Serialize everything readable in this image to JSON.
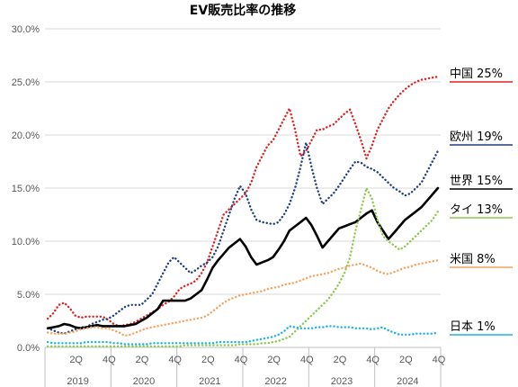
{
  "chart_data": {
    "type": "line",
    "title": "EV販売比率の推移",
    "xlabel": "",
    "ylabel": "",
    "ylim": [
      0,
      0.3
    ],
    "ytick_labels": [
      "0.0%",
      "5.0%",
      "10.0%",
      "15.0%",
      "20.0%",
      "25.0%",
      "30.0%"
    ],
    "ytick_values": [
      0,
      0.05,
      0.1,
      0.15,
      0.2,
      0.25,
      0.3
    ],
    "x": [
      "2019-01",
      "2019-02",
      "2019-03",
      "2019-04",
      "2019-05",
      "2019-06",
      "2019-07",
      "2019-08",
      "2019-09",
      "2019-10",
      "2019-11",
      "2019-12",
      "2020-01",
      "2020-02",
      "2020-03",
      "2020-04",
      "2020-05",
      "2020-06",
      "2020-07",
      "2020-08",
      "2020-09",
      "2020-10",
      "2020-11",
      "2020-12",
      "2021-01",
      "2021-02",
      "2021-03",
      "2021-04",
      "2021-05",
      "2021-06",
      "2021-07",
      "2021-08",
      "2021-09",
      "2021-10",
      "2021-11",
      "2021-12",
      "2022-01",
      "2022-02",
      "2022-03",
      "2022-04",
      "2022-05",
      "2022-06",
      "2022-07",
      "2022-08",
      "2022-09",
      "2022-10",
      "2022-11",
      "2022-12",
      "2023-01",
      "2023-02",
      "2023-03",
      "2023-04",
      "2023-05",
      "2023-06",
      "2023-07",
      "2023-08",
      "2023-09",
      "2023-10",
      "2023-11",
      "2023-12",
      "2024-01",
      "2024-02",
      "2024-03",
      "2024-04",
      "2024-05",
      "2024-06",
      "2024-07",
      "2024-08",
      "2024-09",
      "2024-10",
      "2024-11",
      "2024-12"
    ],
    "quarter_labels": [
      "2Q",
      "4Q",
      "2Q",
      "4Q",
      "2Q",
      "4Q",
      "2Q",
      "4Q",
      "2Q",
      "4Q",
      "2Q",
      "4Q"
    ],
    "year_labels": [
      "2019",
      "2020",
      "2021",
      "2022",
      "2023",
      "2024"
    ],
    "grid": "horizontal",
    "series": [
      {
        "name": "中国",
        "label": "中国  25%",
        "color": "#e02020",
        "style": "dotted",
        "values": [
          0.027,
          0.032,
          0.04,
          0.042,
          0.037,
          0.03,
          0.028,
          0.029,
          0.029,
          0.029,
          0.029,
          0.026,
          0.022,
          0.02,
          0.021,
          0.022,
          0.024,
          0.027,
          0.03,
          0.033,
          0.036,
          0.04,
          0.043,
          0.048,
          0.055,
          0.058,
          0.06,
          0.063,
          0.07,
          0.08,
          0.095,
          0.11,
          0.125,
          0.13,
          0.135,
          0.14,
          0.145,
          0.155,
          0.17,
          0.18,
          0.19,
          0.195,
          0.205,
          0.215,
          0.225,
          0.205,
          0.18,
          0.185,
          0.195,
          0.205,
          0.205,
          0.208,
          0.21,
          0.215,
          0.22,
          0.224,
          0.21,
          0.195,
          0.178,
          0.19,
          0.205,
          0.215,
          0.225,
          0.232,
          0.238,
          0.243,
          0.247,
          0.25,
          0.252,
          0.253,
          0.254,
          0.255
        ]
      },
      {
        "name": "欧州",
        "label": "欧州  19%",
        "color": "#1f3f7f",
        "style": "dotted",
        "values": [
          0.018,
          0.016,
          0.014,
          0.013,
          0.015,
          0.017,
          0.019,
          0.019,
          0.022,
          0.024,
          0.026,
          0.027,
          0.03,
          0.034,
          0.038,
          0.04,
          0.04,
          0.04,
          0.045,
          0.05,
          0.06,
          0.07,
          0.08,
          0.085,
          0.08,
          0.075,
          0.07,
          0.073,
          0.077,
          0.08,
          0.085,
          0.095,
          0.11,
          0.125,
          0.14,
          0.152,
          0.145,
          0.13,
          0.12,
          0.118,
          0.117,
          0.116,
          0.118,
          0.125,
          0.135,
          0.15,
          0.17,
          0.193,
          0.17,
          0.15,
          0.135,
          0.14,
          0.145,
          0.152,
          0.16,
          0.168,
          0.175,
          0.174,
          0.17,
          0.168,
          0.165,
          0.16,
          0.155,
          0.15,
          0.147,
          0.143,
          0.145,
          0.15,
          0.155,
          0.165,
          0.175,
          0.185
        ]
      },
      {
        "name": "世界",
        "label": "世界  15%",
        "color": "#000000",
        "style": "solid",
        "values": [
          0.018,
          0.019,
          0.02,
          0.022,
          0.021,
          0.019,
          0.018,
          0.019,
          0.02,
          0.021,
          0.02,
          0.02,
          0.02,
          0.02,
          0.02,
          0.021,
          0.022,
          0.025,
          0.028,
          0.032,
          0.036,
          0.044,
          0.044,
          0.044,
          0.044,
          0.044,
          0.046,
          0.05,
          0.054,
          0.064,
          0.075,
          0.082,
          0.088,
          0.094,
          0.098,
          0.102,
          0.095,
          0.085,
          0.078,
          0.08,
          0.082,
          0.085,
          0.092,
          0.1,
          0.11,
          0.114,
          0.118,
          0.122,
          0.115,
          0.105,
          0.094,
          0.1,
          0.106,
          0.112,
          0.114,
          0.116,
          0.118,
          0.122,
          0.126,
          0.129,
          0.118,
          0.11,
          0.102,
          0.108,
          0.114,
          0.12,
          0.124,
          0.128,
          0.132,
          0.138,
          0.144,
          0.15
        ]
      },
      {
        "name": "タイ",
        "label": "タイ  13%",
        "color": "#8cc84b",
        "style": "dotted",
        "values": [
          0.001,
          0.001,
          0.001,
          0.001,
          0.001,
          0.001,
          0.001,
          0.001,
          0.001,
          0.001,
          0.001,
          0.001,
          0.001,
          0.001,
          0.001,
          0.001,
          0.001,
          0.001,
          0.001,
          0.001,
          0.001,
          0.001,
          0.001,
          0.001,
          0.001,
          0.002,
          0.002,
          0.002,
          0.002,
          0.002,
          0.002,
          0.002,
          0.002,
          0.002,
          0.002,
          0.003,
          0.003,
          0.003,
          0.003,
          0.004,
          0.004,
          0.005,
          0.006,
          0.008,
          0.01,
          0.015,
          0.02,
          0.025,
          0.03,
          0.035,
          0.04,
          0.045,
          0.052,
          0.06,
          0.07,
          0.085,
          0.11,
          0.13,
          0.15,
          0.14,
          0.12,
          0.105,
          0.1,
          0.096,
          0.092,
          0.095,
          0.1,
          0.105,
          0.11,
          0.115,
          0.12,
          0.128
        ]
      },
      {
        "name": "米国",
        "label": "米国  8%",
        "color": "#f4a460",
        "style": "dotted",
        "values": [
          0.014,
          0.013,
          0.013,
          0.013,
          0.014,
          0.015,
          0.017,
          0.018,
          0.019,
          0.019,
          0.018,
          0.018,
          0.016,
          0.014,
          0.011,
          0.012,
          0.014,
          0.016,
          0.018,
          0.019,
          0.02,
          0.021,
          0.022,
          0.023,
          0.024,
          0.025,
          0.026,
          0.027,
          0.028,
          0.03,
          0.034,
          0.038,
          0.042,
          0.045,
          0.047,
          0.049,
          0.05,
          0.051,
          0.052,
          0.053,
          0.055,
          0.056,
          0.057,
          0.059,
          0.06,
          0.061,
          0.063,
          0.065,
          0.067,
          0.068,
          0.069,
          0.07,
          0.072,
          0.074,
          0.075,
          0.077,
          0.078,
          0.079,
          0.077,
          0.075,
          0.072,
          0.07,
          0.069,
          0.071,
          0.073,
          0.075,
          0.076,
          0.078,
          0.079,
          0.08,
          0.081,
          0.082
        ]
      },
      {
        "name": "日本",
        "label": "日本  1%",
        "color": "#1cb4e0",
        "style": "dotted",
        "values": [
          0.005,
          0.004,
          0.004,
          0.004,
          0.004,
          0.004,
          0.004,
          0.005,
          0.005,
          0.005,
          0.005,
          0.005,
          0.004,
          0.004,
          0.003,
          0.003,
          0.003,
          0.003,
          0.003,
          0.004,
          0.004,
          0.004,
          0.004,
          0.004,
          0.004,
          0.004,
          0.004,
          0.004,
          0.004,
          0.004,
          0.004,
          0.005,
          0.005,
          0.005,
          0.005,
          0.005,
          0.005,
          0.006,
          0.007,
          0.008,
          0.009,
          0.01,
          0.012,
          0.015,
          0.02,
          0.019,
          0.018,
          0.018,
          0.018,
          0.019,
          0.019,
          0.02,
          0.02,
          0.019,
          0.019,
          0.019,
          0.018,
          0.018,
          0.018,
          0.017,
          0.018,
          0.019,
          0.016,
          0.014,
          0.012,
          0.012,
          0.012,
          0.013,
          0.013,
          0.013,
          0.013,
          0.014
        ]
      }
    ]
  }
}
